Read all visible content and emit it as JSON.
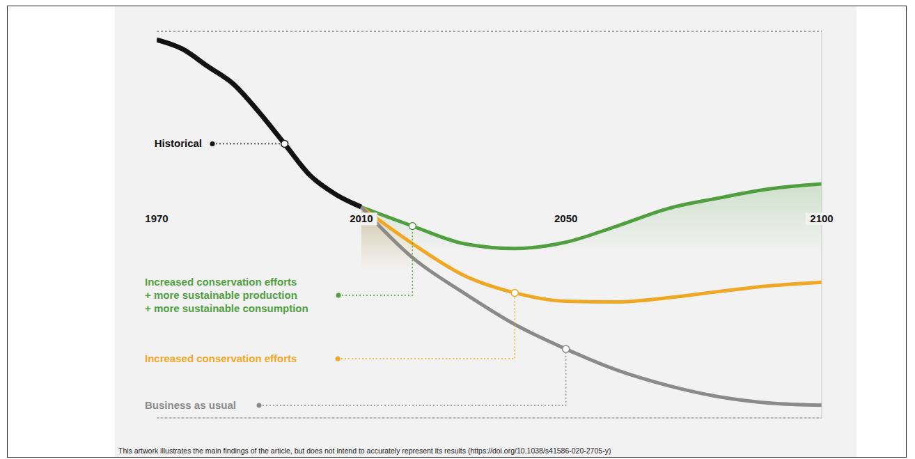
{
  "chart_data": {
    "type": "line",
    "x": [
      1970,
      1975,
      1980,
      1985,
      1990,
      1995,
      2000,
      2005,
      2010,
      2020,
      2030,
      2040,
      2050,
      2060,
      2070,
      2080,
      2090,
      2100
    ],
    "xlim": [
      1970,
      2100
    ],
    "xticks": [
      1970,
      2010,
      2050,
      2100
    ],
    "ylim": [
      -3,
      2.5
    ],
    "yticks": [
      0
    ],
    "grid": true,
    "tick_labels": "x",
    "series": [
      {
        "name": "Historical",
        "color": "#111111",
        "values": [
          2.38,
          2.25,
          2.0,
          1.75,
          1.35,
          0.9,
          0.45,
          0.18,
          0,
          null,
          null,
          null,
          null,
          null,
          null,
          null,
          null,
          null
        ]
      },
      {
        "name": "Increased conservation efforts + more sustainable production + more sustainable consumption",
        "color": "#4f9f3f",
        "values": [
          null,
          null,
          null,
          null,
          null,
          null,
          null,
          null,
          0,
          -0.27,
          -0.52,
          -0.59,
          -0.5,
          -0.27,
          -0.02,
          0.13,
          0.26,
          0.33
        ]
      },
      {
        "name": "Increased conservation efforts",
        "color": "#f0a824",
        "values": [
          null,
          null,
          null,
          null,
          null,
          null,
          null,
          null,
          0,
          -0.52,
          -0.97,
          -1.22,
          -1.34,
          -1.35,
          -1.29,
          -1.2,
          -1.12,
          -1.07
        ]
      },
      {
        "name": "Business as usual",
        "color": "#8a8a8a",
        "values": [
          null,
          null,
          null,
          null,
          null,
          null,
          null,
          null,
          0,
          -0.72,
          -1.22,
          -1.67,
          -2.02,
          -2.32,
          -2.54,
          -2.7,
          -2.79,
          -2.82
        ]
      }
    ],
    "caption": "This artwork illustrates the main findings of the article, but does not intend to accurately represent its results (https://doi.org/10.1038/s41586-020-2705-y)"
  }
}
